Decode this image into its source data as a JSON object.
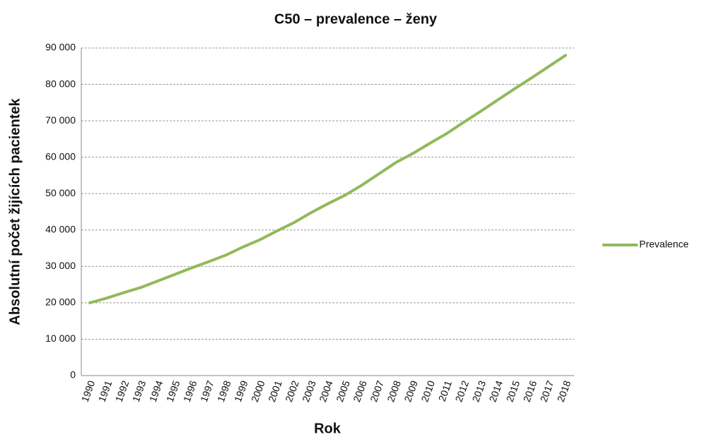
{
  "chart_data": {
    "type": "line",
    "title": "C50 – prevalence – ženy",
    "x_label": "Rok",
    "y_label": "Absolutní počet žijících pacientek",
    "categories": [
      "1990",
      "1991",
      "1992",
      "1993",
      "1994",
      "1995",
      "1996",
      "1997",
      "1998",
      "1999",
      "2000",
      "2001",
      "2002",
      "2003",
      "2004",
      "2005",
      "2006",
      "2007",
      "2008",
      "2009",
      "2010",
      "2011",
      "2012",
      "2013",
      "2014",
      "2015",
      "2016",
      "2017",
      "2018"
    ],
    "series": [
      {
        "name": "Prevalence",
        "color": "#92b95a",
        "values": [
          20000,
          21300,
          22800,
          24200,
          26000,
          27800,
          29600,
          31300,
          33100,
          35300,
          37300,
          39700,
          42000,
          44700,
          47200,
          49500,
          52300,
          55400,
          58500,
          61000,
          63800,
          66500,
          69600,
          72600,
          75700,
          78800,
          81800,
          84900,
          88000
        ]
      }
    ],
    "ylim": [
      0,
      90000
    ],
    "yticks": [
      0,
      {
        "value": 10000,
        "label": "10 000"
      },
      {
        "value": 20000,
        "label": "20 000"
      },
      {
        "value": 30000,
        "label": "30 000"
      },
      {
        "value": 40000,
        "label": "40 000"
      },
      {
        "value": 50000,
        "label": "50 000"
      },
      {
        "value": 60000,
        "label": "60 000"
      },
      {
        "value": 70000,
        "label": "70 000"
      },
      {
        "value": 80000,
        "label": "80 000"
      },
      {
        "value": 90000,
        "label": "90 000"
      }
    ],
    "grid": true,
    "legend": "right"
  }
}
